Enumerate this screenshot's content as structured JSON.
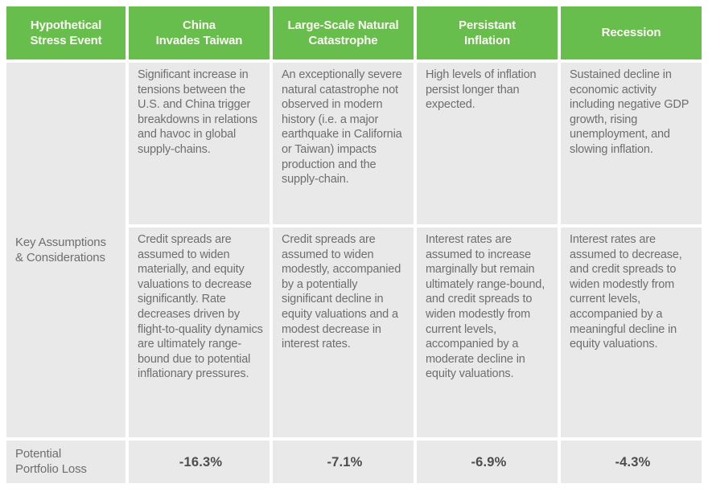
{
  "colors": {
    "header_bg": "#67be4d",
    "header_text": "#fbfaf4",
    "cell_bg": "#e9e9e9",
    "body_text": "#6e6e6e",
    "value_text": "#4d4d4f"
  },
  "header": {
    "row_label": "Hypothetical\nStress Event",
    "columns": [
      "China\nInvades Taiwan",
      "Large-Scale Natural\nCatastrophe",
      "Persistant\nInflation",
      "Recession"
    ]
  },
  "key_assumptions_label": "Key Assumptions\n& Considerations",
  "scenario_descriptions": [
    "Significant increase in tensions between the U.S. and China trigger breakdowns in relations and havoc in global supply-chains.",
    "An exceptionally severe natural catastrophe not observed in modern history (i.e. a major earthquake in California or Taiwan) impacts production and the supply-chain.",
    "High levels of inflation persist longer than expected.",
    "Sustained decline in economic activity including negative GDP growth, rising unemployment, and slowing inflation."
  ],
  "key_assumptions": [
    "Credit spreads are assumed to widen materially, and equity valuations to decrease significantly. Rate decreases driven by flight-to-quality dynamics are ultimately range-bound due to potential inflationary pressures.",
    "Credit spreads are assumed to widen modestly, accompanied by a potentially significant decline in equity valuations and a modest decrease in interest rates.",
    "Interest rates are assumed to increase marginally but remain ultimately range-bound, and credit spreads to widen modestly from current levels, accompanied by a moderate decline in equity valuations.",
    "Interest rates are assumed to decrease, and credit spreads to widen modestly from current levels, accompanied by a meaningful decline in equity valuations."
  ],
  "portfolio_loss": {
    "label": "Potential\nPortfolio Loss",
    "values": [
      "-16.3%",
      "-7.1%",
      "-6.9%",
      "-4.3%"
    ]
  }
}
